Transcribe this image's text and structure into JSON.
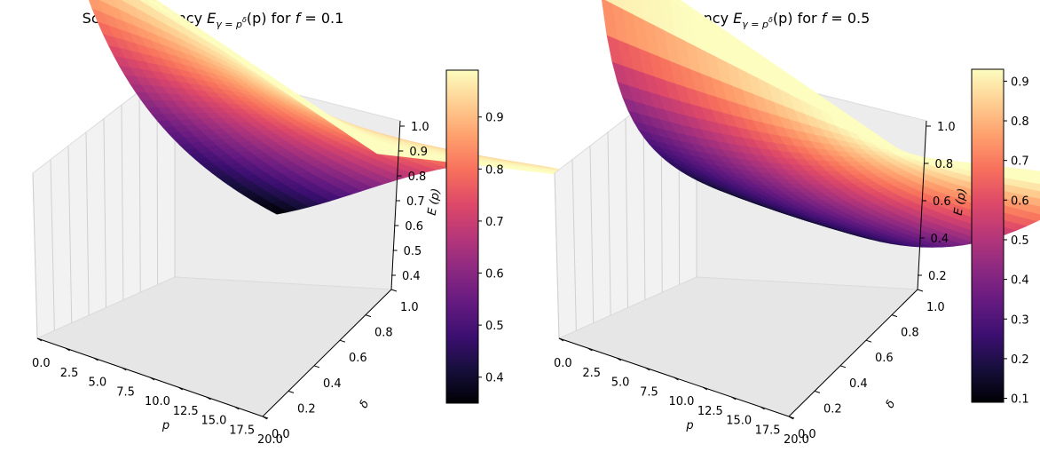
{
  "chart_data": [
    {
      "type": "surface",
      "title": "Scaled Efficiency E_{γ=p^δ}(p) for f = 0.1",
      "title_parts": {
        "pre": "Scaled Efficiency ",
        "E": "E",
        "sub": "γ = p",
        "sup": "δ",
        "post": "(p) for ",
        "f": "f",
        "eq": " = 0.1"
      },
      "f": 0.1,
      "xlabel": "p",
      "ylabel": "δ",
      "zlabel": "E (p)",
      "xlim": [
        0,
        20
      ],
      "ylim": [
        0,
        1
      ],
      "x_ticks": [
        "0.0",
        "2.5",
        "5.0",
        "7.5",
        "10.0",
        "12.5",
        "15.0",
        "17.5",
        "20.0"
      ],
      "y_ticks": [
        "0.0",
        "0.2",
        "0.4",
        "0.6",
        "0.8",
        "1.0"
      ],
      "z_ticks": [
        "0.4",
        "0.5",
        "0.6",
        "0.7",
        "0.8",
        "0.9",
        "1.0"
      ],
      "z_range": [
        0.35,
        1.0
      ],
      "colormap": "magma",
      "colorbar": {
        "min": 0.35,
        "max": 0.99,
        "ticks": [
          "0.4",
          "0.5",
          "0.6",
          "0.7",
          "0.8",
          "0.9"
        ]
      },
      "corners": {
        "p0_d0": 1.0,
        "p0_d1": 1.0,
        "p20_d0": 0.35,
        "p20_d1": 0.9
      }
    },
    {
      "type": "surface",
      "title": "Scaled Efficiency E_{γ=p^δ}(p) for f = 0.5",
      "title_parts": {
        "pre": "Scaled Efficiency ",
        "E": "E",
        "sub": "γ = p",
        "sup": "δ",
        "post": "(p) for ",
        "f": "f",
        "eq": " = 0.5"
      },
      "f": 0.5,
      "xlabel": "p",
      "ylabel": "δ",
      "zlabel": "E (p)",
      "xlim": [
        0,
        20
      ],
      "ylim": [
        0,
        1
      ],
      "x_ticks": [
        "0.0",
        "2.5",
        "5.0",
        "7.5",
        "10.0",
        "12.5",
        "15.0",
        "17.5",
        "20.0"
      ],
      "y_ticks": [
        "0.0",
        "0.2",
        "0.4",
        "0.6",
        "0.8",
        "1.0"
      ],
      "z_ticks": [
        "0.2",
        "0.4",
        "0.6",
        "0.8",
        "1.0"
      ],
      "z_range": [
        0.1,
        1.0
      ],
      "colormap": "magma",
      "colorbar": {
        "min": 0.09,
        "max": 0.93,
        "ticks": [
          "0.1",
          "0.2",
          "0.3",
          "0.4",
          "0.5",
          "0.6",
          "0.7",
          "0.8",
          "0.9"
        ]
      },
      "corners": {
        "p0_d0": 1.0,
        "p0_d1": 1.0,
        "p20_d0": 0.1,
        "p20_d1": 0.6
      }
    }
  ]
}
